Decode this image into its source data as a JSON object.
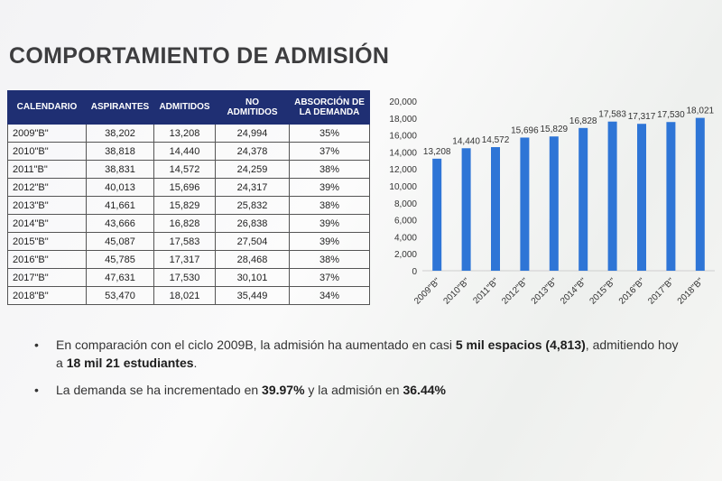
{
  "title": "COMPORTAMIENTO DE ADMISIÓN",
  "table": {
    "headers": [
      "CALENDARIO",
      "ASPIRANTES",
      "ADMITIDOS",
      "NO ADMITIDOS",
      "ABSORCIÓN DE LA DEMANDA"
    ],
    "rows": [
      [
        "2009\"B\"",
        "38,202",
        "13,208",
        "24,994",
        "35%"
      ],
      [
        "2010\"B\"",
        "38,818",
        "14,440",
        "24,378",
        "37%"
      ],
      [
        "2011\"B\"",
        "38,831",
        "14,572",
        "24,259",
        "38%"
      ],
      [
        "2012\"B\"",
        "40,013",
        "15,696",
        "24,317",
        "39%"
      ],
      [
        "2013\"B\"",
        "41,661",
        "15,829",
        "25,832",
        "38%"
      ],
      [
        "2014\"B\"",
        "43,666",
        "16,828",
        "26,838",
        "39%"
      ],
      [
        "2015\"B\"",
        "45,087",
        "17,583",
        "27,504",
        "39%"
      ],
      [
        "2016\"B\"",
        "45,785",
        "17,317",
        "28,468",
        "38%"
      ],
      [
        "2017\"B\"",
        "47,631",
        "17,530",
        "30,101",
        "37%"
      ],
      [
        "2018\"B\"",
        "53,470",
        "18,021",
        "35,449",
        "34%"
      ]
    ]
  },
  "chart_data": {
    "type": "bar",
    "categories": [
      "2009\"B\"",
      "2010\"B\"",
      "2011\"B\"",
      "2012\"B\"",
      "2013\"B\"",
      "2014\"B\"",
      "2015\"B\"",
      "2016\"B\"",
      "2017\"B\"",
      "2018\"B\""
    ],
    "values": [
      13208,
      14440,
      14572,
      15696,
      15829,
      16828,
      17583,
      17317,
      17530,
      18021
    ],
    "value_labels": [
      "13,208",
      "14,440",
      "14,572",
      "15,696",
      "15,829",
      "16,828",
      "17,583",
      "17,317",
      "17,530",
      "18,021"
    ],
    "yticks": [
      0,
      2000,
      4000,
      6000,
      8000,
      10000,
      12000,
      14000,
      16000,
      18000,
      20000
    ],
    "ytick_labels": [
      "0",
      "2,000",
      "4,000",
      "6,000",
      "8,000",
      "10,000",
      "12,000",
      "14,000",
      "16,000",
      "18,000",
      "20,000"
    ],
    "ylim": [
      0,
      20000
    ],
    "grid": false,
    "bar_color": "#2e75d6",
    "title": "",
    "xlabel": "",
    "ylabel": ""
  },
  "bullets": [
    [
      {
        "t": "En comparación con el ciclo 2009B, la admisión ha aumentado en casi ",
        "b": false
      },
      {
        "t": "5 mil espacios (4,813)",
        "b": true
      },
      {
        "t": ", admitiendo hoy a ",
        "b": false
      },
      {
        "t": "18 mil 21 estudiantes",
        "b": true
      },
      {
        "t": ".",
        "b": false
      }
    ],
    [
      {
        "t": "La demanda se ha incrementado en ",
        "b": false
      },
      {
        "t": "39.97%",
        "b": true
      },
      {
        "t": " y la admisión en ",
        "b": false
      },
      {
        "t": "36.44%",
        "b": true
      }
    ]
  ],
  "bullet_glyph": "•"
}
